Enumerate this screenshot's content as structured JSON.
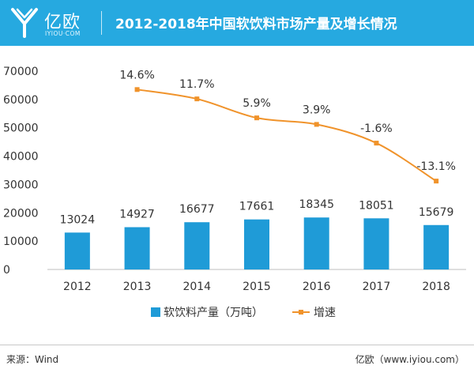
{
  "header": {
    "logo_text": "亿欧",
    "logo_sub": "IYIOU·COM",
    "title": "2012-2018年中国软饮料市场产量及增长情况"
  },
  "chart_data": {
    "type": "bar",
    "title": "2012-2018年中国软饮料市场产量及增长情况",
    "categories": [
      "2012",
      "2013",
      "2014",
      "2015",
      "2016",
      "2017",
      "2018"
    ],
    "series": [
      {
        "name": "软饮料产量（万吨）",
        "type": "bar",
        "values": [
          13024,
          14927,
          16677,
          17661,
          18345,
          18051,
          15679
        ],
        "labels": [
          "13024",
          "14927",
          "16677",
          "17661",
          "18345",
          "18051",
          "15679"
        ],
        "color": "#1f9bd7"
      },
      {
        "name": "增速",
        "type": "line",
        "points": [
          {
            "category": "2013",
            "value": 63500,
            "label": "14.6%"
          },
          {
            "category": "2014",
            "value": 60200,
            "label": "11.7%"
          },
          {
            "category": "2015",
            "value": 53500,
            "label": "5.9%"
          },
          {
            "category": "2016",
            "value": 51200,
            "label": "3.9%"
          },
          {
            "category": "2017",
            "value": 44600,
            "label": "-1.6%"
          },
          {
            "category": "2018",
            "value": 31200,
            "label": "-13.1%"
          }
        ],
        "color": "#f0932b"
      }
    ],
    "y_ticks": [
      "70000",
      "60000",
      "50000",
      "40000",
      "30000",
      "20000",
      "10000",
      "0"
    ],
    "ylim": [
      0,
      70000
    ],
    "legend_position": "bottom"
  },
  "footer": {
    "source": "来源：Wind",
    "credit": "亿欧（www.iyiou.com）"
  },
  "colors": {
    "header_bg": "#26a9e0",
    "bar": "#1f9bd7",
    "line": "#f0932b"
  }
}
